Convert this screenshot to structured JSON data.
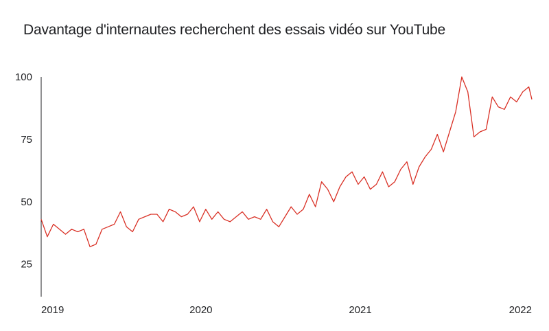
{
  "title": "Davantage d'internautes recherchent des essais vidéo sur YouTube",
  "chart_data": {
    "type": "line",
    "title": "Davantage d'internautes recherchent des essais vidéo sur YouTube",
    "xlabel": "",
    "ylabel": "",
    "ylim": [
      12,
      100
    ],
    "xlim": [
      "2018-12-30",
      "2022-01-30"
    ],
    "y_ticks": [
      25,
      50,
      75,
      100
    ],
    "x_ticks": [
      {
        "date": "2019-01-01",
        "label": "2019"
      },
      {
        "date": "2020-01-01",
        "label": "2020"
      },
      {
        "date": "2021-01-01",
        "label": "2021"
      },
      {
        "date": "2022-01-01",
        "label": "2022"
      }
    ],
    "grid": false,
    "legend": "none",
    "color": "#d93025",
    "series": [
      {
        "x": [
          "2018-12-30",
          "2019-01-13",
          "2019-01-27",
          "2019-02-10",
          "2019-02-24",
          "2019-03-10",
          "2019-03-24",
          "2019-04-07",
          "2019-04-21",
          "2019-05-05",
          "2019-05-19",
          "2019-06-02",
          "2019-06-16",
          "2019-06-30",
          "2019-07-14",
          "2019-07-28",
          "2019-08-11",
          "2019-08-25",
          "2019-09-08",
          "2019-09-22",
          "2019-10-06",
          "2019-10-20",
          "2019-11-03",
          "2019-11-17",
          "2019-12-01",
          "2019-12-15",
          "2019-12-29",
          "2020-01-12",
          "2020-01-26",
          "2020-02-09",
          "2020-02-23",
          "2020-03-08",
          "2020-03-22",
          "2020-04-05",
          "2020-04-19",
          "2020-05-03",
          "2020-05-17",
          "2020-05-31",
          "2020-06-14",
          "2020-06-28",
          "2020-07-12",
          "2020-07-26",
          "2020-08-09",
          "2020-08-23",
          "2020-09-06",
          "2020-09-20",
          "2020-10-04",
          "2020-10-18",
          "2020-11-01",
          "2020-11-15",
          "2020-11-29",
          "2020-12-13",
          "2020-12-27",
          "2021-01-10",
          "2021-01-24",
          "2021-02-07",
          "2021-02-21",
          "2021-03-07",
          "2021-03-21",
          "2021-04-04",
          "2021-04-18",
          "2021-05-02",
          "2021-05-16",
          "2021-05-30",
          "2021-06-13",
          "2021-06-27",
          "2021-07-11",
          "2021-07-25",
          "2021-08-08",
          "2021-08-22",
          "2021-09-05",
          "2021-09-19",
          "2021-10-03",
          "2021-10-17",
          "2021-10-31",
          "2021-11-14",
          "2021-11-28",
          "2021-12-12",
          "2021-12-26",
          "2022-01-09",
          "2022-01-23",
          "2022-01-30"
        ],
        "values": [
          43,
          36,
          41,
          39,
          37,
          39,
          38,
          39,
          32,
          33,
          39,
          40,
          41,
          46,
          40,
          38,
          43,
          44,
          45,
          45,
          42,
          47,
          46,
          44,
          45,
          48,
          42,
          47,
          43,
          46,
          43,
          42,
          44,
          46,
          43,
          44,
          43,
          47,
          42,
          40,
          44,
          48,
          45,
          47,
          53,
          48,
          58,
          55,
          50,
          56,
          60,
          62,
          57,
          60,
          55,
          57,
          62,
          56,
          58,
          63,
          66,
          57,
          64,
          68,
          71,
          77,
          70,
          78,
          86,
          100,
          94,
          76,
          78,
          79,
          92,
          88,
          87,
          92,
          90,
          94,
          96,
          91
        ]
      }
    ]
  }
}
